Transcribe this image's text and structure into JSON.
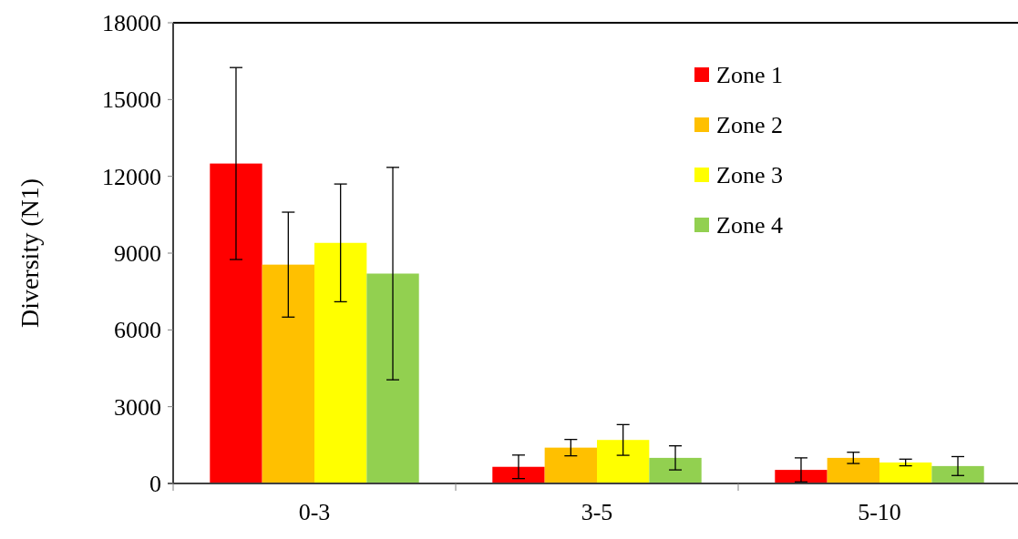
{
  "chart_data": {
    "type": "bar",
    "ylabel": "Diversity (N1)",
    "categories": [
      "0-3",
      "3-5",
      "5-10"
    ],
    "ylim": [
      0,
      18000
    ],
    "yticks": [
      0,
      3000,
      6000,
      9000,
      12000,
      15000,
      18000
    ],
    "grid": false,
    "legend": "top right",
    "series": [
      {
        "name": "Zone 1",
        "color": "#ff0000",
        "values": [
          12500,
          650,
          530
        ],
        "errors": [
          3750,
          460,
          470
        ]
      },
      {
        "name": "Zone 2",
        "color": "#ffc000",
        "values": [
          8550,
          1400,
          1000
        ],
        "errors": [
          2050,
          320,
          220
        ]
      },
      {
        "name": "Zone 3",
        "color": "#ffff00",
        "values": [
          9400,
          1700,
          820
        ],
        "errors": [
          2300,
          600,
          130
        ]
      },
      {
        "name": "Zone 4",
        "color": "#92d050",
        "values": [
          8200,
          1000,
          680
        ],
        "errors": [
          4150,
          470,
          370
        ]
      }
    ]
  }
}
